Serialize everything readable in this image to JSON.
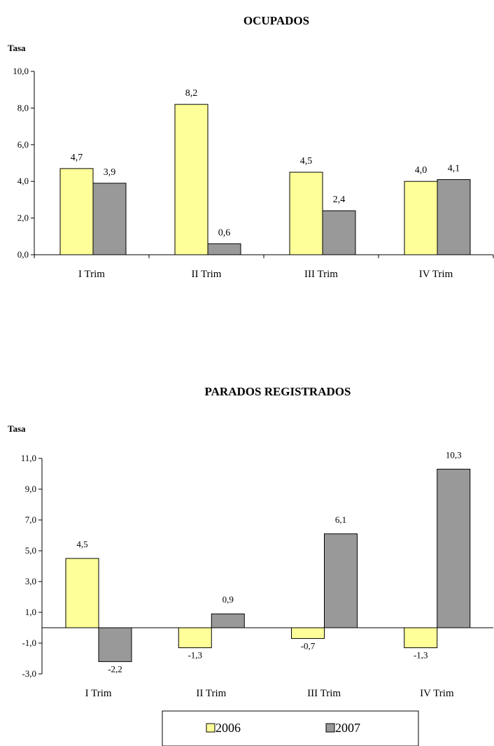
{
  "chart_data": [
    {
      "type": "bar",
      "title": "OCUPADOS",
      "ylabel": "Tasa",
      "xlabel": "",
      "categories": [
        "I Trim",
        "II Trim",
        "III Trim",
        "IV Trim"
      ],
      "ylim": [
        0,
        10
      ],
      "yticks": [
        "0,0",
        "2,0",
        "4,0",
        "6,0",
        "8,0",
        "10,0"
      ],
      "series": [
        {
          "name": "2006",
          "color": "#ffff99",
          "values": [
            4.7,
            8.2,
            4.5,
            4.0
          ],
          "labels": [
            "4,7",
            "8,2",
            "4,5",
            "4,0"
          ]
        },
        {
          "name": "2007",
          "color": "#999999",
          "values": [
            3.9,
            0.6,
            2.4,
            4.1
          ],
          "labels": [
            "3,9",
            "0,6",
            "2,4",
            "4,1"
          ]
        }
      ],
      "grid": false
    },
    {
      "type": "bar",
      "title": "PARADOS REGISTRADOS",
      "ylabel": "Tasa",
      "xlabel": "",
      "categories": [
        "I Trim",
        "II Trim",
        "III Trim",
        "IV Trim"
      ],
      "ylim": [
        -3,
        11
      ],
      "yticks": [
        "-3,0",
        "-1,0",
        "1,0",
        "3,0",
        "5,0",
        "7,0",
        "9,0",
        "11,0"
      ],
      "series": [
        {
          "name": "2006",
          "color": "#ffff99",
          "values": [
            4.5,
            -1.3,
            -0.7,
            -1.3
          ],
          "labels": [
            "4,5",
            "-1,3",
            "-0,7",
            "-1,3"
          ]
        },
        {
          "name": "2007",
          "color": "#999999",
          "values": [
            -2.2,
            0.9,
            6.1,
            10.3
          ],
          "labels": [
            "-2,2",
            "0,9",
            "6,1",
            "10,3"
          ]
        }
      ],
      "grid": false
    }
  ],
  "legend": {
    "placement": "bottom",
    "items": [
      {
        "label": "2006",
        "color": "#ffff99"
      },
      {
        "label": "2007",
        "color": "#999999"
      }
    ]
  }
}
